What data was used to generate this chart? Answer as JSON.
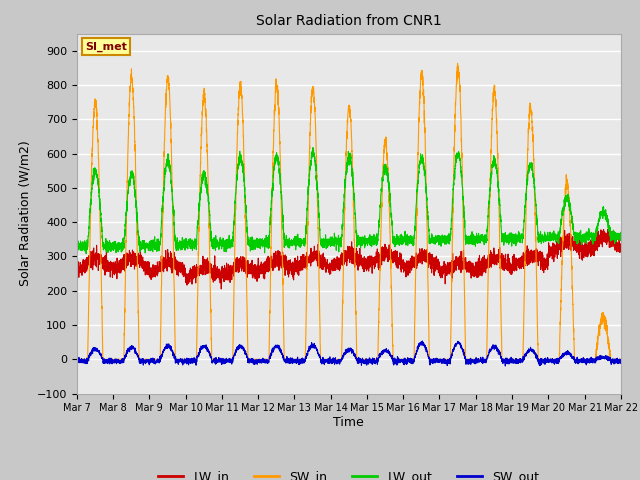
{
  "title": "Solar Radiation from CNR1",
  "xlabel": "Time",
  "ylabel": "Solar Radiation (W/m2)",
  "ylim": [
    -100,
    950
  ],
  "yticks": [
    -100,
    0,
    100,
    200,
    300,
    400,
    500,
    600,
    700,
    800,
    900
  ],
  "fig_bg_color": "#c8c8c8",
  "axes_bg_color": "#e8e8e8",
  "colors": {
    "LW_in": "#cc0000",
    "SW_in": "#ff9900",
    "LW_out": "#00cc00",
    "SW_out": "#0000cc"
  },
  "annotation_text": "SI_met",
  "annotation_bg": "#ffff99",
  "annotation_border": "#cc8800",
  "num_days": 15,
  "points_per_day": 288,
  "xtick_labels": [
    "Mar 7",
    "Mar 8",
    "Mar 9",
    "Mar 10",
    "Mar 11",
    "Mar 12",
    "Mar 13",
    "Mar 14",
    "Mar 15",
    "Mar 16",
    "Mar 17",
    "Mar 18",
    "Mar 19",
    "Mar 20",
    "Mar 21",
    "Mar 22"
  ],
  "figsize": [
    6.4,
    4.8
  ],
  "dpi": 100
}
